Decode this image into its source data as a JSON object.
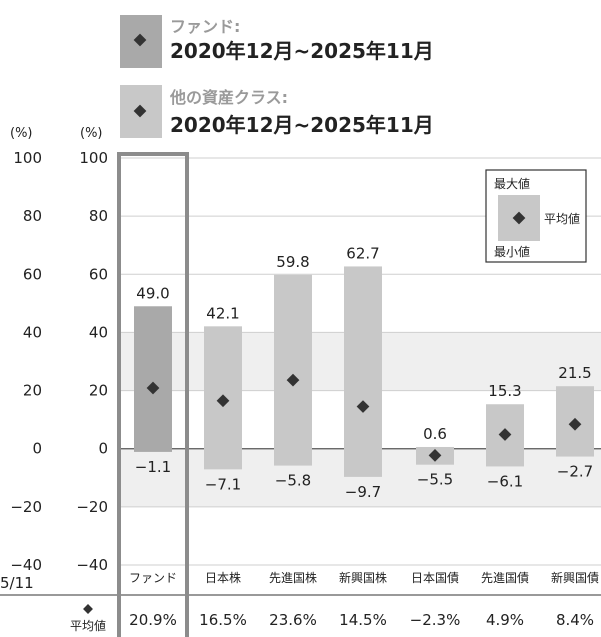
{
  "legend": {
    "fund_label": "ファンド:",
    "fund_period": "2020年12月~2025年11月",
    "other_label": "他の資産クラス:",
    "other_period": "2020年12月~2025年11月",
    "box_max": "最大値",
    "box_avg": "平均値",
    "box_min": "最小値"
  },
  "left_axis": {
    "unit": "(%)",
    "ticks": [
      "100",
      "80",
      "60",
      "40",
      "20",
      "0",
      "−20",
      "−40"
    ],
    "bottom_label": "5/11"
  },
  "axis": {
    "unit": "(%)",
    "ticks": [
      "100",
      "80",
      "60",
      "40",
      "20",
      "0",
      "−20",
      "−40"
    ]
  },
  "avg_row_label": "平均値",
  "colors": {
    "fund_bar": "#a9a9a9",
    "other_bar": "#c8c8c8",
    "highlight_frame": "#8c8c8c",
    "marker": "#333333",
    "band": "#efefef"
  },
  "chart_data": {
    "type": "bar",
    "title": "",
    "ylabel": "(%)",
    "ylim": [
      -40,
      100
    ],
    "yticks": [
      100,
      80,
      60,
      40,
      20,
      0,
      -20,
      -40
    ],
    "categories": [
      "ファンド",
      "日本株",
      "先進国株",
      "新興国株",
      "日本国債",
      "先進国債",
      "新興国債"
    ],
    "series": [
      {
        "name": "最大値",
        "values": [
          49.0,
          42.1,
          59.8,
          62.7,
          0.6,
          15.3,
          21.5
        ]
      },
      {
        "name": "最小値",
        "values": [
          -1.1,
          -7.1,
          -5.8,
          -9.7,
          -5.5,
          -6.1,
          -2.7
        ]
      },
      {
        "name": "平均値",
        "values": [
          20.9,
          16.5,
          23.6,
          14.5,
          -2.3,
          4.9,
          8.4
        ]
      }
    ],
    "max_labels": [
      "49.0",
      "42.1",
      "59.8",
      "62.7",
      "0.6",
      "15.3",
      "21.5"
    ],
    "min_labels": [
      "−1.1",
      "−7.1",
      "−5.8",
      "−9.7",
      "−5.5",
      "−6.1",
      "−2.7"
    ],
    "avg_labels": [
      "20.9%",
      "16.5%",
      "23.6%",
      "14.5%",
      "−2.3%",
      "4.9%",
      "8.4%"
    ]
  }
}
